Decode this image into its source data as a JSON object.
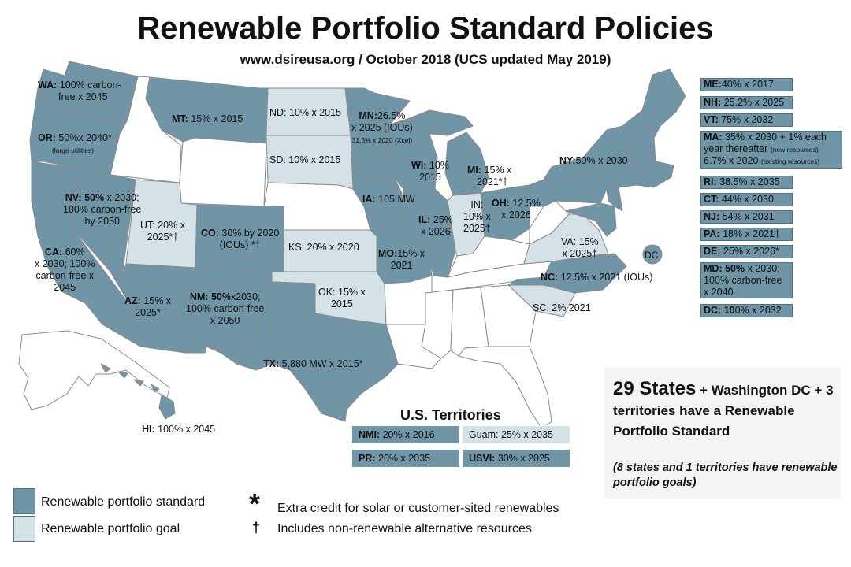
{
  "header": {
    "title": "Renewable Portfolio Standard Policies",
    "subtitle": "www.dsireusa.org / October 2018 (UCS updated May  2019)"
  },
  "colors": {
    "standard": "#6f95a6",
    "goal": "#d4e1e7",
    "no_policy": "#ffffff",
    "border": "#8a8a8a"
  },
  "states": {
    "WA": {
      "abbr": "WA:",
      "text": "100% carbon-",
      "line2": "free x 2045"
    },
    "OR": {
      "abbr": "OR:",
      "text": "50%x 2040*",
      "note": "(large utilities)"
    },
    "MT": {
      "abbr": "MT:",
      "text": "15% x 2015"
    },
    "ND": {
      "text": "ND: 10% x 2015"
    },
    "SD": {
      "text": "SD: 10% x 2015"
    },
    "MN": {
      "abbr": "MN:",
      "text": "26.5%",
      "line2": "x 2025 (IOUs)",
      "note": "31.5% x 2020 (Xcel)"
    },
    "WI": {
      "abbr": "WI:",
      "text": "10%",
      "line2": "2015"
    },
    "MI": {
      "abbr": "MI:",
      "text": "15% x",
      "line2": "2021*†"
    },
    "NY": {
      "abbr": "NY:",
      "text": "50% x 2030"
    },
    "NV": {
      "abbr": "NV:",
      "text": "50%",
      "text2": "x 2030;",
      "line2": "100% carbon-free",
      "line3": "by 2050"
    },
    "UT": {
      "text": "UT: 20% x",
      "line2": "2025*†"
    },
    "CO": {
      "abbr": "CO:",
      "text": "30% by 2020",
      "line2": "(IOUs) *†"
    },
    "IA": {
      "abbr": "IA:",
      "text": "105 MW"
    },
    "IN": {
      "text": "IN:",
      "line2": "10% x",
      "line3": "2025†"
    },
    "OH": {
      "abbr": "OH:",
      "text": "12.5%",
      "line2": "x 2026"
    },
    "IL": {
      "abbr": "IL:",
      "text": "25%",
      "line2": "x 2026"
    },
    "KS": {
      "text": "KS: 20% x 2020"
    },
    "MO": {
      "abbr": "MO:",
      "text": "15% x",
      "line2": "2021"
    },
    "VA": {
      "text": "VA: 15%",
      "line2": "x 2025†"
    },
    "DC": {
      "text": "DC"
    },
    "CA": {
      "abbr": "CA:",
      "text": "60%",
      "line2": "x 2030; 100%",
      "line3": "carbon-free x",
      "line4": "2045"
    },
    "AZ": {
      "abbr": "AZ:",
      "text": "15% x",
      "line2": "2025*"
    },
    "NM": {
      "abbr": "NM:",
      "text": "50%",
      "text2": "x2030;",
      "line2": "100% carbon-free",
      "line3": "x 2050"
    },
    "OK": {
      "text": "OK: 15% x",
      "line2": "2015"
    },
    "NC": {
      "abbr": "NC:",
      "text": "12.5% x 2021 (IOUs)"
    },
    "SC": {
      "text": "SC: 2% 2021"
    },
    "TX": {
      "abbr": "TX:",
      "text": "5,880 MW x 2015*"
    },
    "HI": {
      "abbr": "HI:",
      "text": "100% x 2045"
    }
  },
  "northeast": [
    {
      "abbr": "ME:",
      "text": "40% x 2017"
    },
    {
      "abbr": "NH:",
      "text": "25.2% x 2025"
    },
    {
      "abbr": "VT:",
      "text": "75% x 2032"
    },
    {
      "abbr": "MA:",
      "text": "35% x 2030 + 1% each",
      "line2": "year thereafter",
      "note2": "(new resources)",
      "line3": "6.7% x 2020",
      "note3": "(existing resources)"
    },
    {
      "abbr": "RI:",
      "text": "38.5% x 2035"
    },
    {
      "abbr": "CT:",
      "text": "44% x 2030"
    },
    {
      "abbr": "NJ:",
      "text": "54% x 2031"
    },
    {
      "abbr": "PA:",
      "text": "18% x 2021†"
    },
    {
      "abbr": "DE:",
      "text": "25% x 2026*"
    },
    {
      "abbr": "MD:",
      "text": "50%",
      "text2": "x 2030;",
      "line2": "100% carbon-free",
      "line3": "x 2040"
    },
    {
      "abbr": "DC:",
      "text": "10",
      "text2": "0% x 2032"
    }
  ],
  "territories": {
    "title": "U.S. Territories",
    "items": [
      {
        "abbr": "NMI:",
        "text": "20% x 2016",
        "kind": "standard"
      },
      {
        "abbr": "",
        "text": "Guam: 25% x 2035",
        "kind": "goal"
      },
      {
        "abbr": "PR:",
        "text": "20% x 2035",
        "kind": "standard"
      },
      {
        "abbr": "USVI:",
        "text": "30% x 2025",
        "kind": "standard"
      }
    ]
  },
  "summary": {
    "big": "29 States",
    "rest": "+ Washington DC + 3 territories have a Renewable Portfolio Standard",
    "note": "(8 states and 1 territories have renewable portfolio goals)"
  },
  "legend": {
    "standard_label": "Renewable portfolio standard",
    "goal_label": "Renewable portfolio goal",
    "asterisk_symbol": "*",
    "asterisk_label": "Extra credit for solar or customer-sited renewables",
    "dagger_symbol": "†",
    "dagger_label": "Includes non-renewable alternative resources"
  }
}
